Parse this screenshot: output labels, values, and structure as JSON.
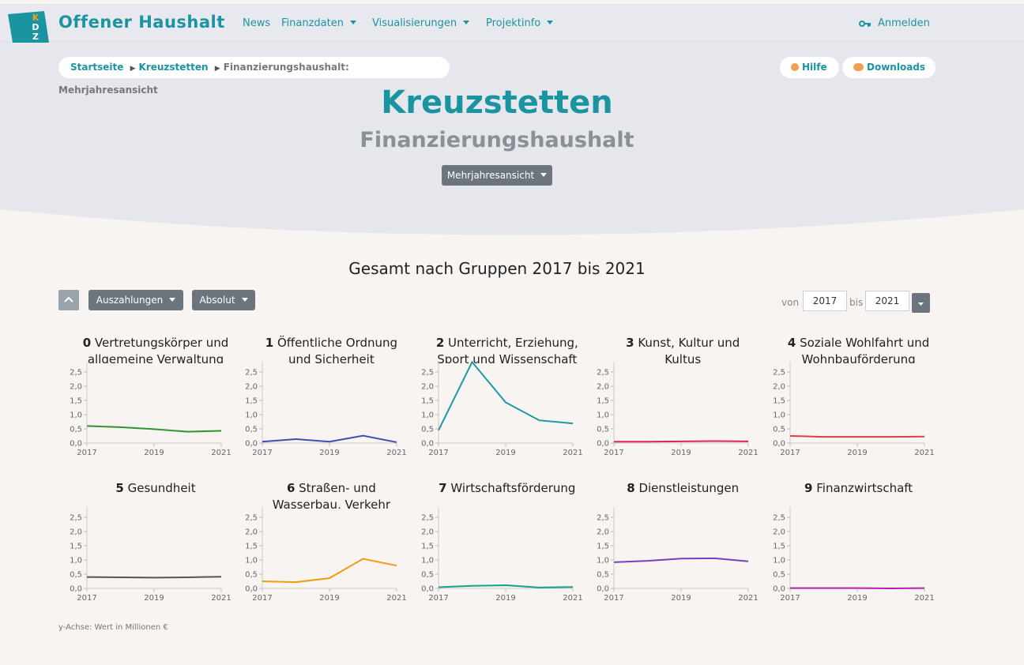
{
  "header": {
    "logo_letters": [
      "K",
      "D",
      "Z"
    ],
    "brand": "Offener Haushalt",
    "nav": [
      "News",
      "Finanzdaten",
      "Visualisierungen",
      "Projektinfo"
    ],
    "login": "Anmelden"
  },
  "breadcrumb": [
    "Startseite",
    "Kreuzstetten",
    "Finanzierungshaushalt: Mehrjahresansicht"
  ],
  "actions": [
    "Hilfe",
    "Downloads"
  ],
  "page": {
    "title": "Kreuzstetten",
    "subtitle": "Finanzierungshaushalt",
    "view": "Mehrjahresansicht"
  },
  "section": {
    "title": "Gesamt nach Gruppen 2017 bis 2021",
    "type_filter": "Auszahlungen",
    "mode_filter": "Absolut",
    "from_label": "von",
    "from": "2017",
    "to_label": "bis",
    "to": "2021",
    "note": "y-Achse: Wert in Millionen €"
  },
  "chart_data": [
    {
      "type": "line",
      "number": "0",
      "title": "Vertretungskörper und allgemeine Verwaltung",
      "x": [
        2017,
        2018,
        2019,
        2020,
        2021
      ],
      "values": [
        0.6,
        0.56,
        0.49,
        0.4,
        0.43
      ],
      "color": "#2e962e",
      "xlim": [
        2017,
        2021
      ],
      "xticks": [
        2017,
        2019,
        2021
      ],
      "ylim": [
        0,
        2.85
      ],
      "yticks": [
        {
          "value": 0,
          "label": "0,0"
        },
        {
          "value": 0.5,
          "label": "0,5"
        },
        {
          "value": 1,
          "label": "1,0"
        },
        {
          "value": 1.5,
          "label": "1,5"
        },
        {
          "value": 2,
          "label": "2,0"
        },
        {
          "value": 2.5,
          "label": "2,5"
        }
      ]
    },
    {
      "type": "line",
      "number": "1",
      "title": "Öffentliche Ordnung und Sicherheit",
      "x": [
        2017,
        2018,
        2019,
        2020,
        2021
      ],
      "values": [
        0.05,
        0.14,
        0.05,
        0.26,
        0.03
      ],
      "color": "#3b4fb0",
      "xlim": [
        2017,
        2021
      ],
      "xticks": [
        2017,
        2019,
        2021
      ],
      "ylim": [
        0,
        2.85
      ],
      "yticks": [
        {
          "value": 0,
          "label": "0,0"
        },
        {
          "value": 0.5,
          "label": "0,5"
        },
        {
          "value": 1,
          "label": "1,0"
        },
        {
          "value": 1.5,
          "label": "1,5"
        },
        {
          "value": 2,
          "label": "2,0"
        },
        {
          "value": 2.5,
          "label": "2,5"
        }
      ]
    },
    {
      "type": "line",
      "number": "2",
      "title": "Unterricht, Erziehung, Sport und Wissenschaft",
      "x": [
        2017,
        2018,
        2019,
        2020,
        2021
      ],
      "values": [
        0.45,
        2.85,
        1.43,
        0.8,
        0.69
      ],
      "color": "#1a98a4",
      "xlim": [
        2017,
        2021
      ],
      "xticks": [
        2017,
        2019,
        2021
      ],
      "ylim": [
        0,
        2.85
      ],
      "yticks": [
        {
          "value": 0,
          "label": "0,0"
        },
        {
          "value": 0.5,
          "label": "0,5"
        },
        {
          "value": 1,
          "label": "1,0"
        },
        {
          "value": 1.5,
          "label": "1,5"
        },
        {
          "value": 2,
          "label": "2,0"
        },
        {
          "value": 2.5,
          "label": "2,5"
        }
      ]
    },
    {
      "type": "line",
      "number": "3",
      "title": "Kunst, Kultur und Kultus",
      "x": [
        2017,
        2018,
        2019,
        2020,
        2021
      ],
      "values": [
        0.05,
        0.05,
        0.06,
        0.07,
        0.06
      ],
      "color": "#d9245c",
      "xlim": [
        2017,
        2021
      ],
      "xticks": [
        2017,
        2019,
        2021
      ],
      "ylim": [
        0,
        2.85
      ],
      "yticks": [
        {
          "value": 0,
          "label": "0,0"
        },
        {
          "value": 0.5,
          "label": "0,5"
        },
        {
          "value": 1,
          "label": "1,0"
        },
        {
          "value": 1.5,
          "label": "1,5"
        },
        {
          "value": 2,
          "label": "2,0"
        },
        {
          "value": 2.5,
          "label": "2,5"
        }
      ]
    },
    {
      "type": "line",
      "number": "4",
      "title": "Soziale Wohlfahrt und Wohnbauförderung",
      "x": [
        2017,
        2018,
        2019,
        2020,
        2021
      ],
      "values": [
        0.25,
        0.22,
        0.22,
        0.22,
        0.23
      ],
      "color": "#d6443c",
      "xlim": [
        2017,
        2021
      ],
      "xticks": [
        2017,
        2019,
        2021
      ],
      "ylim": [
        0,
        2.85
      ],
      "yticks": [
        {
          "value": 0,
          "label": "0,0"
        },
        {
          "value": 0.5,
          "label": "0,5"
        },
        {
          "value": 1,
          "label": "1,0"
        },
        {
          "value": 1.5,
          "label": "1,5"
        },
        {
          "value": 2,
          "label": "2,0"
        },
        {
          "value": 2.5,
          "label": "2,5"
        }
      ]
    },
    {
      "type": "line",
      "number": "5",
      "title": "Gesundheit",
      "x": [
        2017,
        2018,
        2019,
        2020,
        2021
      ],
      "values": [
        0.4,
        0.39,
        0.38,
        0.39,
        0.41
      ],
      "color": "#555555",
      "xlim": [
        2017,
        2021
      ],
      "xticks": [
        2017,
        2019,
        2021
      ],
      "ylim": [
        0,
        2.85
      ],
      "yticks": [
        {
          "value": 0,
          "label": "0,0"
        },
        {
          "value": 0.5,
          "label": "0,5"
        },
        {
          "value": 1,
          "label": "1,0"
        },
        {
          "value": 1.5,
          "label": "1,5"
        },
        {
          "value": 2,
          "label": "2,0"
        },
        {
          "value": 2.5,
          "label": "2,5"
        }
      ]
    },
    {
      "type": "line",
      "number": "6",
      "title": "Straßen- und Wasserbau, Verkehr",
      "x": [
        2017,
        2018,
        2019,
        2020,
        2021
      ],
      "values": [
        0.25,
        0.22,
        0.36,
        1.04,
        0.8
      ],
      "color": "#f39a12",
      "xlim": [
        2017,
        2021
      ],
      "xticks": [
        2017,
        2019,
        2021
      ],
      "ylim": [
        0,
        2.85
      ],
      "yticks": [
        {
          "value": 0,
          "label": "0,0"
        },
        {
          "value": 0.5,
          "label": "0,5"
        },
        {
          "value": 1,
          "label": "1,0"
        },
        {
          "value": 1.5,
          "label": "1,5"
        },
        {
          "value": 2,
          "label": "2,0"
        },
        {
          "value": 2.5,
          "label": "2,5"
        }
      ]
    },
    {
      "type": "line",
      "number": "7",
      "title": "Wirtschaftsförderung",
      "x": [
        2017,
        2018,
        2019,
        2020,
        2021
      ],
      "values": [
        0.04,
        0.09,
        0.11,
        0.03,
        0.05
      ],
      "color": "#15a08a",
      "xlim": [
        2017,
        2021
      ],
      "xticks": [
        2017,
        2019,
        2021
      ],
      "ylim": [
        0,
        2.85
      ],
      "yticks": [
        {
          "value": 0,
          "label": "0,0"
        },
        {
          "value": 0.5,
          "label": "0,5"
        },
        {
          "value": 1,
          "label": "1,0"
        },
        {
          "value": 1.5,
          "label": "1,5"
        },
        {
          "value": 2,
          "label": "2,0"
        },
        {
          "value": 2.5,
          "label": "2,5"
        }
      ]
    },
    {
      "type": "line",
      "number": "8",
      "title": "Dienstleistungen",
      "x": [
        2017,
        2018,
        2019,
        2020,
        2021
      ],
      "values": [
        0.92,
        0.97,
        1.05,
        1.06,
        0.95
      ],
      "color": "#7a3fbd",
      "xlim": [
        2017,
        2021
      ],
      "xticks": [
        2017,
        2019,
        2021
      ],
      "ylim": [
        0,
        2.85
      ],
      "yticks": [
        {
          "value": 0,
          "label": "0,0"
        },
        {
          "value": 0.5,
          "label": "0,5"
        },
        {
          "value": 1,
          "label": "1,0"
        },
        {
          "value": 1.5,
          "label": "1,5"
        },
        {
          "value": 2,
          "label": "2,0"
        },
        {
          "value": 2.5,
          "label": "2,5"
        }
      ]
    },
    {
      "type": "line",
      "number": "9",
      "title": "Finanzwirtschaft",
      "x": [
        2017,
        2018,
        2019,
        2020,
        2021
      ],
      "values": [
        0.01,
        0.01,
        0.01,
        0.0,
        0.01
      ],
      "color": "#b021b3",
      "xlim": [
        2017,
        2021
      ],
      "xticks": [
        2017,
        2019,
        2021
      ],
      "ylim": [
        0,
        2.85
      ],
      "yticks": [
        {
          "value": 0,
          "label": "0,0"
        },
        {
          "value": 0.5,
          "label": "0,5"
        },
        {
          "value": 1,
          "label": "1,0"
        },
        {
          "value": 1.5,
          "label": "1,5"
        },
        {
          "value": 2,
          "label": "2,0"
        },
        {
          "value": 2.5,
          "label": "2,5"
        }
      ]
    }
  ]
}
